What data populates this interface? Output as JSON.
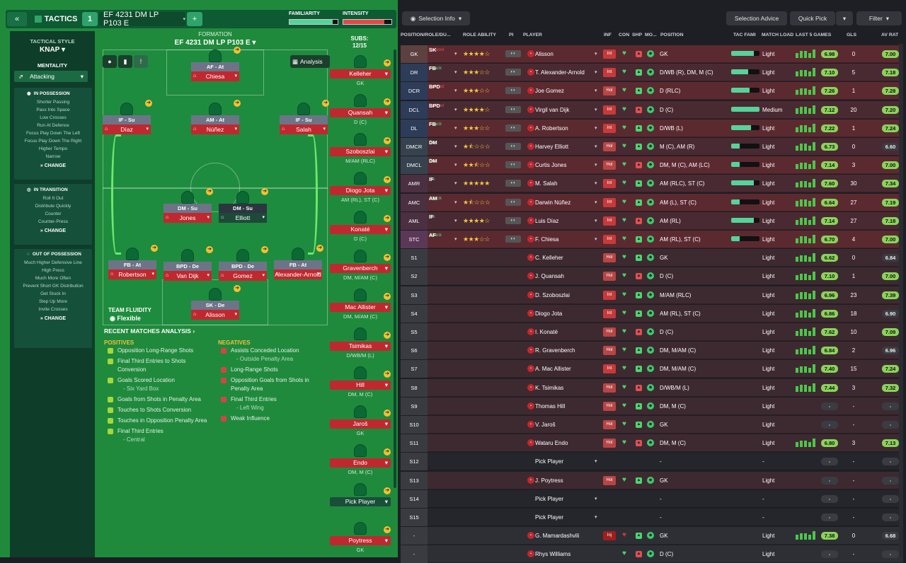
{
  "topbar": {
    "tactics_label": "TACTICS",
    "slot": "1",
    "formation_name": "EF 4231 DM LP P103 E",
    "familiarity_label": "FAMILIARITY",
    "intensity_label": "INTENSITY",
    "familiarity": 0.9,
    "intensity": 0.85
  },
  "tactic_panel": {
    "style_label": "TACTICAL STYLE",
    "style": "KNAP",
    "mentality_label": "MENTALITY",
    "mentality": "Attacking",
    "possession": {
      "title": "IN POSSESSION",
      "items": [
        "Shorter Passing",
        "Pass Into Space",
        "Low Crosses",
        "Run At Defence",
        "Focus Play Down The Left",
        "Focus Play Down The Right",
        "Higher Tempo",
        "Narrow"
      ],
      "change": "CHANGE"
    },
    "transition": {
      "title": "IN TRANSITION",
      "items": [
        "Roll It Out",
        "Distribute Quickly",
        "Counter",
        "Counter-Press"
      ],
      "change": "CHANGE"
    },
    "out_possession": {
      "title": "OUT OF POSSESSION",
      "items": [
        "Much Higher Defensive Line",
        "High Press",
        "Much More Often",
        "Prevent Short GK Distribution",
        "Get Stuck In",
        "Step Up More",
        "Invite Crosses"
      ],
      "change": "CHANGE"
    }
  },
  "formation": {
    "label": "FORMATION",
    "name": "EF 4231 DM LP P103 E",
    "subs_label": "SUBS:",
    "subs_count": "12/15",
    "analysis_btn": "Analysis"
  },
  "pitch_players": [
    {
      "role": "AF - At",
      "name": "Chiesa"
    },
    {
      "role": "IF - Su",
      "name": "Díaz"
    },
    {
      "role": "AM - At",
      "name": "Núñez"
    },
    {
      "role": "IF - Su",
      "name": "Salah"
    },
    {
      "role": "DM - Su",
      "name": "Jones"
    },
    {
      "role": "DM - Su",
      "name": "Elliott"
    },
    {
      "role": "FB - At",
      "name": "Robertson"
    },
    {
      "role": "BPD - De",
      "name": "Van Dijk"
    },
    {
      "role": "BPD - De",
      "name": "Gomez"
    },
    {
      "role": "FB - At",
      "name": "Alexander-Arnold"
    },
    {
      "role": "SK - De",
      "name": "Alisson"
    }
  ],
  "team_fluidity": {
    "label": "TEAM FLUIDITY",
    "value": "Flexible"
  },
  "recent": {
    "title": "RECENT MATCHES ANALYSIS",
    "pos_label": "POSITIVES",
    "neg_label": "NEGATIVES",
    "positives": [
      [
        "Opposition Long-Range Shots",
        ""
      ],
      [
        "Final Third Entries to Shots Conversion",
        ""
      ],
      [
        "Goals Scored Location",
        "- Six Yard Box"
      ],
      [
        "Goals from Shots in Penalty Area",
        ""
      ],
      [
        "Touches to Shots Conversion",
        ""
      ],
      [
        "Touches in Opposition Penalty Area",
        ""
      ],
      [
        "Final Third Entries",
        "- Central"
      ]
    ],
    "negatives": [
      [
        "Assists Conceded Location",
        "- Outside Penalty Area"
      ],
      [
        "Long-Range Shots",
        ""
      ],
      [
        "Opposition Goals from Shots in Penalty Area",
        ""
      ],
      [
        "Final Third Entries",
        "- Left Wing"
      ],
      [
        "Weak Influence",
        ""
      ]
    ]
  },
  "subs": [
    {
      "name": "Kelleher",
      "pos": "GK"
    },
    {
      "name": "Quansah",
      "pos": "D (C)"
    },
    {
      "name": "Szoboszlai",
      "pos": "M/AM (RLC)"
    },
    {
      "name": "Diogo Jota",
      "pos": "AM (RL), ST (C)"
    },
    {
      "name": "Konaté",
      "pos": "D (C)"
    },
    {
      "name": "Gravenberch",
      "pos": "DM, M/AM (C)"
    },
    {
      "name": "Mac Allister",
      "pos": "DM, M/AM (C)"
    },
    {
      "name": "Tsimikas",
      "pos": "D/WB/M (L)"
    },
    {
      "name": "Hill",
      "pos": "DM, M (C)"
    },
    {
      "name": "Jaroš",
      "pos": "GK"
    },
    {
      "name": "Endo",
      "pos": "DM, M (C)"
    },
    {
      "name": "Pick Player",
      "pos": ""
    },
    {
      "name": "Poytress",
      "pos": "GK"
    }
  ],
  "right_toolbar": {
    "selection_info": "Selection Info",
    "selection_advice": "Selection Advice",
    "quick_pick": "Quick Pick",
    "filter": "Filter"
  },
  "columns": {
    "pos": "POSITION/ROLE/DU...",
    "ra": "ROLE ABILITY",
    "pi": "PI",
    "player": "PLAYER",
    "inf": "INF",
    "con": "CON",
    "shp": "SHP",
    "mo": "MO...",
    "position": "POSITION",
    "tac": "TAC FAMI",
    "ml": "MATCH LOAD",
    "l5": "LAST 5 GAMES",
    "gls": "GLS",
    "avr": "AV RAT"
  },
  "rows": [
    {
      "pos": "GK",
      "role": "SK",
      "duty": "Defend",
      "stars": 4,
      "name": "Alisson",
      "inf": "Int",
      "position": "GK",
      "fam": 0.8,
      "load": "Light",
      "rating": "6.98",
      "gls": "0",
      "avr": "7.00",
      "bg": "#5b2a30"
    },
    {
      "pos": "DR",
      "role": "FB",
      "duty": "Attack",
      "stars": 3,
      "name": "T. Alexander-Arnold",
      "inf": "Int",
      "position": "D/WB (R), DM, M (C)",
      "fam": 0.6,
      "load": "Light",
      "rating": "7.10",
      "gls": "5",
      "avr": "7.18",
      "bg": "#4a2a32"
    },
    {
      "pos": "DCR",
      "role": "BPD",
      "duty": "Defend",
      "stars": 3,
      "name": "Joe Gomez",
      "inf": "Hol",
      "position": "D (RLC)",
      "fam": 0.65,
      "load": "Light",
      "rating": "7.26",
      "gls": "1",
      "avr": "7.28",
      "bg": "#5b2a30"
    },
    {
      "pos": "DCL",
      "role": "BPD",
      "duty": "Defend",
      "stars": 4,
      "name": "Virgil van Dijk",
      "inf": "Int",
      "position": "D (C)",
      "fam": 1,
      "load": "Medium",
      "rating": "7.12",
      "gls": "20",
      "avr": "7.20",
      "bg": "#4a2a32"
    },
    {
      "pos": "DL",
      "role": "FB",
      "duty": "Attack",
      "stars": 3,
      "name": "A. Robertson",
      "inf": "Int",
      "position": "D/WB (L)",
      "fam": 0.7,
      "load": "Light",
      "rating": "7.22",
      "gls": "1",
      "avr": "7.24",
      "bg": "#5b2a30"
    },
    {
      "pos": "DMCR",
      "role": "DM",
      "duty": "Su",
      "stars": 1.5,
      "name": "Harvey Elliott",
      "inf": "Hol",
      "position": "M (C), AM (R)",
      "fam": 0.3,
      "load": "Light",
      "rating": "6.73",
      "gls": "0",
      "avr": "6.60",
      "bg": "#4a2a32"
    },
    {
      "pos": "DMCL",
      "role": "DM",
      "duty": "Su",
      "stars": 2.5,
      "name": "Curtis Jones",
      "inf": "Hol",
      "position": "DM, M (C), AM (LC)",
      "fam": 0.3,
      "load": "Light",
      "rating": "7.14",
      "gls": "3",
      "avr": "7.00",
      "bg": "#5b2a30"
    },
    {
      "pos": "AMR",
      "role": "IF",
      "duty": "Su",
      "stars": 5,
      "name": "M. Salah",
      "inf": "Int",
      "position": "AM (RLC), ST (C)",
      "fam": 0.8,
      "load": "Light",
      "rating": "7.60",
      "gls": "30",
      "avr": "7.34",
      "bg": "#4a2a32"
    },
    {
      "pos": "AMC",
      "role": "AM",
      "duty": "Attack",
      "stars": 1.5,
      "name": "Darwin Núñez",
      "inf": "Int",
      "position": "AM (L), ST (C)",
      "fam": 0.3,
      "load": "Light",
      "rating": "6.64",
      "gls": "27",
      "avr": "7.19",
      "bg": "#5b2a30"
    },
    {
      "pos": "AML",
      "role": "IF",
      "duty": "Su",
      "stars": 4,
      "name": "Luis Díaz",
      "inf": "Int",
      "position": "AM (RL)",
      "fam": 0.8,
      "load": "Light",
      "rating": "7.14",
      "gls": "27",
      "avr": "7.18",
      "bg": "#4a2a32"
    },
    {
      "pos": "STC",
      "role": "AF",
      "duty": "Attack",
      "stars": 3,
      "name": "F. Chiesa",
      "inf": "Int",
      "position": "AM (RL), ST (C)",
      "fam": 0.3,
      "load": "Light",
      "rating": "6.70",
      "gls": "4",
      "avr": "7.00",
      "bg": "#5b2a30"
    },
    {
      "pos": "S1",
      "name": "C. Kelleher",
      "inf": "Hol",
      "position": "GK",
      "load": "Light",
      "rating": "6.62",
      "gls": "0",
      "avr": "6.84",
      "bg": "#3d2a30"
    },
    {
      "pos": "S2",
      "name": "J. Quansah",
      "inf": "Hol",
      "position": "D (C)",
      "load": "Light",
      "rating": "7.10",
      "gls": "1",
      "avr": "7.00",
      "bg": "#3d2a30"
    },
    {
      "pos": "S3",
      "name": "D. Szoboszlai",
      "inf": "Int",
      "position": "M/AM (RLC)",
      "load": "Light",
      "rating": "6.96",
      "gls": "23",
      "avr": "7.39",
      "bg": "#3d2a30"
    },
    {
      "pos": "S4",
      "name": "Diogo Jota",
      "inf": "Int",
      "position": "AM (RL), ST (C)",
      "load": "Light",
      "rating": "6.86",
      "gls": "18",
      "avr": "6.90",
      "bg": "#3d2a30"
    },
    {
      "pos": "S5",
      "name": "I. Konaté",
      "inf": "Hol",
      "position": "D (C)",
      "load": "Light",
      "rating": "7.62",
      "gls": "10",
      "avr": "7.09",
      "bg": "#3d2a30"
    },
    {
      "pos": "S6",
      "name": "R. Gravenberch",
      "inf": "Hol",
      "position": "DM, M/AM (C)",
      "load": "Light",
      "rating": "6.84",
      "gls": "2",
      "avr": "6.96",
      "bg": "#3d2a30"
    },
    {
      "pos": "S7",
      "name": "A. Mac Allister",
      "inf": "Int",
      "position": "DM, M/AM (C)",
      "load": "Light",
      "rating": "7.40",
      "gls": "15",
      "avr": "7.24",
      "bg": "#3d2a30"
    },
    {
      "pos": "S8",
      "name": "K. Tsimikas",
      "inf": "Hol",
      "position": "D/WB/M (L)",
      "load": "Light",
      "rating": "7.44",
      "gls": "3",
      "avr": "7.32",
      "bg": "#3d2a30"
    },
    {
      "pos": "S9",
      "name": "Thomas Hill",
      "inf": "Hol",
      "position": "DM, M (C)",
      "load": "Light",
      "rating": "-",
      "gls": "-",
      "avr": "-",
      "bg": "#3d2a30"
    },
    {
      "pos": "S10",
      "name": "V. Jaroš",
      "inf": "Hol",
      "position": "GK",
      "load": "Light",
      "rating": "-",
      "gls": "-",
      "avr": "-",
      "bg": "#3d2a30"
    },
    {
      "pos": "S11",
      "name": "Wataru Endo",
      "inf": "Hol",
      "position": "DM, M (C)",
      "load": "Light",
      "rating": "6.80",
      "gls": "3",
      "avr": "7.13",
      "bg": "#3d2a30"
    },
    {
      "pos": "S12",
      "name": "Pick Player",
      "position": "-",
      "load": "-",
      "rating": "-",
      "gls": "-",
      "avr": "-",
      "bg": "#25262b",
      "empty": true
    },
    {
      "pos": "S13",
      "name": "J. Poytress",
      "inf": "Hol",
      "position": "GK",
      "load": "Light",
      "rating": "-",
      "gls": "-",
      "avr": "-",
      "bg": "#3d2a30"
    },
    {
      "pos": "S14",
      "name": "Pick Player",
      "position": "-",
      "load": "-",
      "rating": "-",
      "gls": "-",
      "avr": "-",
      "bg": "#25262b",
      "empty": true
    },
    {
      "pos": "S15",
      "name": "Pick Player",
      "position": "-",
      "load": "-",
      "rating": "-",
      "gls": "-",
      "avr": "-",
      "bg": "#25262b",
      "empty": true
    },
    {
      "pos": "-",
      "name": "G. Mamardashvili",
      "inf": "Inj",
      "position": "GK",
      "load": "Light",
      "rating": "7.38",
      "gls": "0",
      "avr": "6.68",
      "bg": "#2e2f35"
    },
    {
      "pos": "-",
      "name": "Rhys Williams",
      "inf": "",
      "position": "D (C)",
      "load": "Light",
      "rating": "-",
      "gls": "-",
      "avr": "-",
      "bg": "#2e2f35"
    }
  ]
}
